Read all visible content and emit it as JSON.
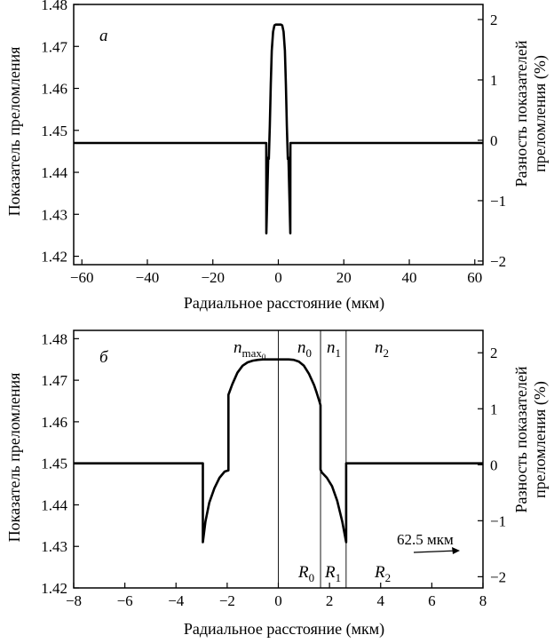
{
  "figure": {
    "panels": [
      {
        "panel_label": "а",
        "ylabel_left": "Показатель преломления",
        "ylabel_right_1": "Разность показателей",
        "ylabel_right_2": "преломления (%)",
        "xlabel": "Радиальное расстояние (мкм)"
      },
      {
        "panel_label": "б",
        "ylabel_left": "Показатель преломления",
        "ylabel_right_1": "Разность показателей",
        "ylabel_right_2": "преломления (%)",
        "xlabel": "Радиальное расстояние (мкм)",
        "annotations": {
          "n_max": "n",
          "n_max_sub": "max",
          "n_max_subsub": "0",
          "n0": "n",
          "n0_sub": "0",
          "n1": "n",
          "n1_sub": "1",
          "n2": "n",
          "n2_sub": "2",
          "R0": "R",
          "R0_sub": "0",
          "R1": "R",
          "R1_sub": "1",
          "R2": "R",
          "R2_sub": "2",
          "scale_note": "62.5 мкм"
        }
      }
    ]
  },
  "chart_data": [
    {
      "type": "line",
      "title": "",
      "xlabel": "Радиальное расстояние (мкм)",
      "ylabel": "Показатель преломления",
      "ylabel_right": "Разность показателей преломления (%)",
      "xlim": [
        -62.5,
        62.5
      ],
      "ylim": [
        1.418,
        1.48
      ],
      "xticks": [
        -60,
        -40,
        -20,
        0,
        20,
        40,
        60
      ],
      "yticks": [
        1.42,
        1.43,
        1.44,
        1.45,
        1.46,
        1.47,
        1.48
      ],
      "y2lim": [
        -2.06,
        2.25
      ],
      "y2ticks": [
        -2,
        -1,
        0,
        1,
        2
      ],
      "grid": false,
      "series": [
        {
          "x": [
            -62.5,
            -3.7,
            -3.65,
            -3.1,
            -2.9,
            -2.6,
            -2.3,
            -2.0,
            -1.6,
            -1.2,
            -0.8,
            -0.4,
            0.0,
            0.4,
            0.8,
            1.2,
            1.6,
            2.0,
            2.3,
            2.6,
            2.9,
            3.1,
            3.65,
            3.7,
            62.5
          ],
          "y": [
            1.447,
            1.447,
            1.4255,
            1.4435,
            1.4432,
            1.451,
            1.461,
            1.469,
            1.4735,
            1.475,
            1.4752,
            1.4752,
            1.4752,
            1.4752,
            1.4752,
            1.475,
            1.4735,
            1.469,
            1.461,
            1.451,
            1.4432,
            1.4435,
            1.4255,
            1.447,
            1.447
          ]
        }
      ]
    },
    {
      "type": "line",
      "title": "",
      "xlabel": "Радиальное расстояние (мкм)",
      "ylabel": "Показатель преломления",
      "ylabel_right": "Разность показателей преломления (%)",
      "xlim": [
        -8,
        8
      ],
      "ylim": [
        1.42,
        1.482
      ],
      "xticks": [
        -8,
        -6,
        -4,
        -2,
        0,
        2,
        4,
        6,
        8
      ],
      "yticks": [
        1.42,
        1.43,
        1.44,
        1.45,
        1.46,
        1.47,
        1.48
      ],
      "y2lim": [
        -2.2,
        2.4
      ],
      "y2ticks": [
        -2,
        -1,
        0,
        1,
        2
      ],
      "grid": false,
      "vertical_lines_x": [
        0,
        1.65,
        2.65
      ],
      "series": [
        {
          "x": [
            -8,
            -2.95,
            -2.95,
            -2.85,
            -2.7,
            -2.5,
            -2.3,
            -2.1,
            -1.95,
            -1.95,
            -1.8,
            -1.6,
            -1.4,
            -1.2,
            -1.0,
            -0.8,
            -0.6,
            -0.4,
            0.0,
            0.4,
            0.6,
            0.8,
            1.0,
            1.2,
            1.4,
            1.5,
            1.6,
            1.65,
            1.65,
            1.7,
            1.9,
            2.1,
            2.3,
            2.5,
            2.65,
            2.65,
            2.75,
            8
          ],
          "y": [
            1.45,
            1.45,
            1.431,
            1.436,
            1.4405,
            1.444,
            1.4465,
            1.448,
            1.4483,
            1.4665,
            1.469,
            1.4718,
            1.4735,
            1.4743,
            1.4747,
            1.4749,
            1.475,
            1.475,
            1.475,
            1.475,
            1.4749,
            1.4745,
            1.4735,
            1.4715,
            1.4688,
            1.467,
            1.465,
            1.464,
            1.4485,
            1.4478,
            1.4465,
            1.4445,
            1.441,
            1.436,
            1.431,
            1.45,
            1.45,
            1.45
          ]
        }
      ]
    }
  ]
}
